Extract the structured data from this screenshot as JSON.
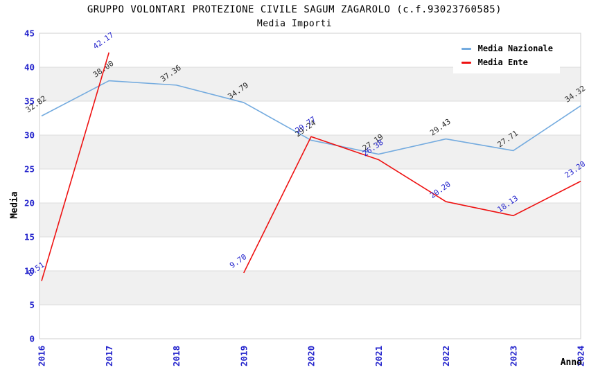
{
  "header": {
    "title": "GRUPPO VOLONTARI PROTEZIONE CIVILE SAGUM ZAGAROLO (c.f.93023760585)",
    "subtitle": "Media Importi"
  },
  "chart_data": {
    "type": "line",
    "title": "GRUPPO VOLONTARI PROTEZIONE CIVILE SAGUM ZAGAROLO (c.f.93023760585)",
    "subtitle": "Media Importi",
    "xlabel": "Anno",
    "ylabel": "Media",
    "categories": [
      "2016",
      "2017",
      "2018",
      "2019",
      "2020",
      "2021",
      "2022",
      "2023",
      "2024"
    ],
    "series": [
      {
        "name": "Media Nazionale",
        "color": "#74abdf",
        "label_color": "#2b2b2b",
        "values": [
          32.82,
          38.0,
          37.36,
          34.79,
          29.24,
          27.19,
          29.43,
          27.71,
          34.32
        ]
      },
      {
        "name": "Media Ente",
        "color": "#ee1111",
        "label_color": "#2323cc",
        "values": [
          8.51,
          42.17,
          null,
          9.7,
          29.77,
          26.38,
          20.2,
          18.13,
          23.2
        ]
      }
    ],
    "ylim": [
      0,
      45
    ],
    "ytick_step": 5,
    "yticks": [
      0,
      5,
      10,
      15,
      20,
      25,
      30,
      35,
      40,
      45
    ],
    "grid": true,
    "legend_position": "top-right",
    "axis_tick_color": "#2323cc",
    "band_color": "#f0f0f0",
    "grid_color": "#dcdcdc",
    "border_color": "#cfcfcf"
  }
}
